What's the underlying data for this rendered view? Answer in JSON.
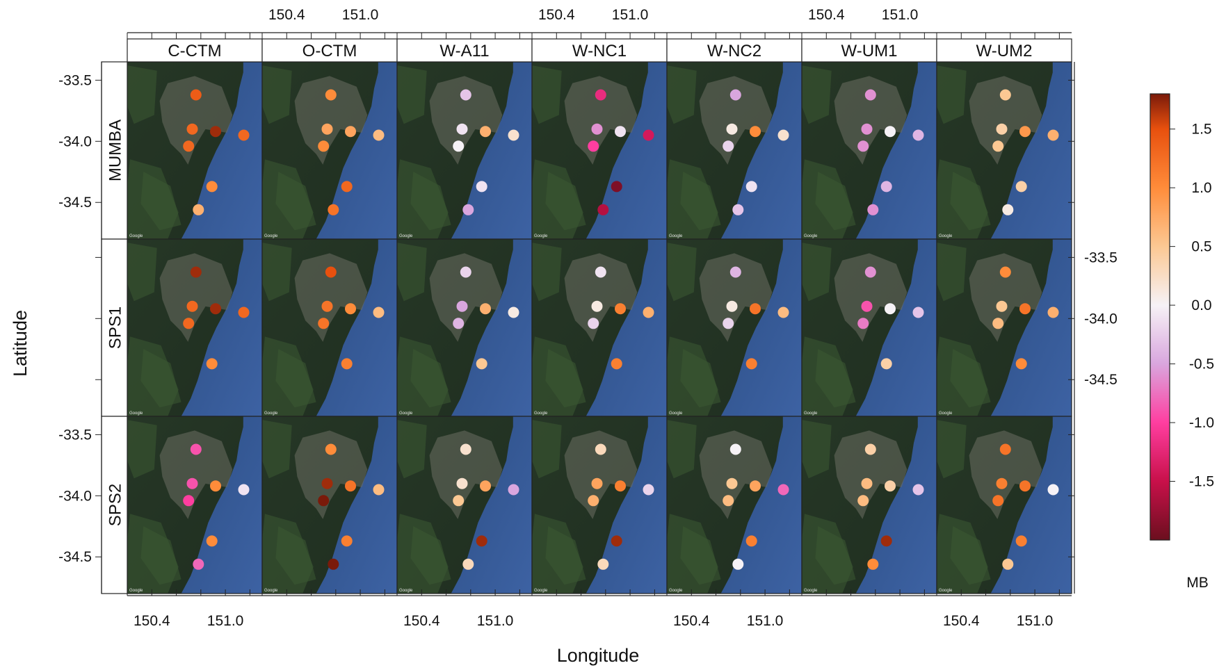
{
  "chart_data": {
    "type": "scatter",
    "xlabel": "Longitude",
    "ylabel": "Latitude",
    "columns": [
      "C-CTM",
      "O-CTM",
      "W-A11",
      "W-NC1",
      "W-NC2",
      "W-UM1",
      "W-UM2"
    ],
    "rows": [
      "MUMBA",
      "SPS1",
      "SPS2"
    ],
    "xlim": [
      150.2,
      151.3
    ],
    "ylim": [
      -34.8,
      -33.35
    ],
    "x_ticks_labeled": [
      "150.4",
      "151.0"
    ],
    "x_tick_values": [
      150.4,
      151.0
    ],
    "y_ticks_labeled": [
      "-33.5",
      "-34.0",
      "-34.5"
    ],
    "y_tick_values": [
      -33.5,
      -34.0,
      -34.5
    ],
    "colorbar": {
      "label": "MB",
      "range": [
        -2.0,
        1.8
      ],
      "ticks": [
        "1.5",
        "1.0",
        "0.5",
        "0.0",
        "-0.5",
        "-1.0",
        "-1.5"
      ],
      "tick_values": [
        1.5,
        1.0,
        0.5,
        0.0,
        -0.5,
        -1.0,
        -1.5
      ],
      "stops": [
        {
          "v": -2.0,
          "color": "#6b0f1e"
        },
        {
          "v": -1.5,
          "color": "#c8104a"
        },
        {
          "v": -1.0,
          "color": "#ff3ea0"
        },
        {
          "v": -0.5,
          "color": "#d9a6de"
        },
        {
          "v": 0.0,
          "color": "#f6f2f6"
        },
        {
          "v": 0.5,
          "color": "#fcc893"
        },
        {
          "v": 1.0,
          "color": "#ff8c3a"
        },
        {
          "v": 1.5,
          "color": "#e8500e"
        },
        {
          "v": 1.8,
          "color": "#7a1a0a"
        }
      ]
    },
    "stations": [
      {
        "lon": 150.76,
        "lat": -33.62
      },
      {
        "lon": 150.73,
        "lat": -33.9
      },
      {
        "lon": 150.7,
        "lat": -34.04
      },
      {
        "lon": 150.92,
        "lat": -33.92
      },
      {
        "lon": 151.15,
        "lat": -33.95
      },
      {
        "lon": 150.89,
        "lat": -34.37
      },
      {
        "lon": 150.78,
        "lat": -34.56
      }
    ],
    "panels": {
      "MUMBA": {
        "C-CTM": [
          1.4,
          1.3,
          1.3,
          1.7,
          1.3,
          1.0,
          0.7
        ],
        "O-CTM": [
          1.0,
          0.8,
          1.0,
          0.8,
          0.6,
          1.3,
          1.2
        ],
        "W-A11": [
          -0.3,
          -0.1,
          0.0,
          0.7,
          0.2,
          -0.1,
          -0.5
        ],
        "W-NC1": [
          -1.2,
          -0.6,
          -1.0,
          -0.1,
          -1.4,
          -1.9,
          -1.6
        ],
        "W-NC2": [
          -0.5,
          0.1,
          -0.2,
          1.0,
          0.2,
          -0.1,
          -0.3
        ],
        "W-UM1": [
          -0.6,
          -0.6,
          -0.6,
          0.0,
          -0.4,
          -0.4,
          -0.6
        ],
        "W-UM2": [
          0.5,
          0.4,
          0.5,
          0.9,
          0.7,
          0.4,
          0.1
        ]
      },
      "SPS1": {
        "C-CTM": [
          1.7,
          1.3,
          1.3,
          1.7,
          1.3,
          1.0,
          null
        ],
        "O-CTM": [
          1.5,
          1.2,
          1.2,
          1.0,
          0.6,
          1.1,
          null
        ],
        "W-A11": [
          -0.2,
          -0.5,
          -0.4,
          0.7,
          0.1,
          0.5,
          null
        ],
        "W-NC1": [
          -0.1,
          0.1,
          -0.2,
          1.1,
          0.7,
          1.1,
          null
        ],
        "W-NC2": [
          -0.4,
          0.1,
          -0.2,
          1.2,
          0.6,
          1.1,
          null
        ],
        "W-UM1": [
          -0.6,
          -0.9,
          -0.7,
          0.0,
          -0.3,
          0.4,
          null
        ],
        "W-UM2": [
          1.0,
          0.5,
          0.6,
          1.2,
          0.7,
          1.0,
          null
        ]
      },
      "SPS2": {
        "C-CTM": [
          -0.9,
          -0.9,
          -1.0,
          1.0,
          -0.1,
          1.0,
          -0.8
        ],
        "O-CTM": [
          1.0,
          1.7,
          1.8,
          1.2,
          0.6,
          1.1,
          1.8
        ],
        "W-A11": [
          0.2,
          0.2,
          0.5,
          0.8,
          -0.5,
          1.7,
          0.3
        ],
        "W-NC1": [
          0.3,
          0.8,
          0.7,
          1.1,
          -0.2,
          1.7,
          0.3
        ],
        "W-NC2": [
          0.0,
          0.5,
          0.6,
          0.8,
          -0.8,
          1.1,
          0.0
        ],
        "W-UM1": [
          0.4,
          0.6,
          0.6,
          0.4,
          -0.3,
          1.7,
          1.0
        ],
        "W-UM2": [
          1.2,
          1.1,
          1.2,
          1.2,
          0.0,
          1.1,
          0.5
        ]
      }
    }
  }
}
